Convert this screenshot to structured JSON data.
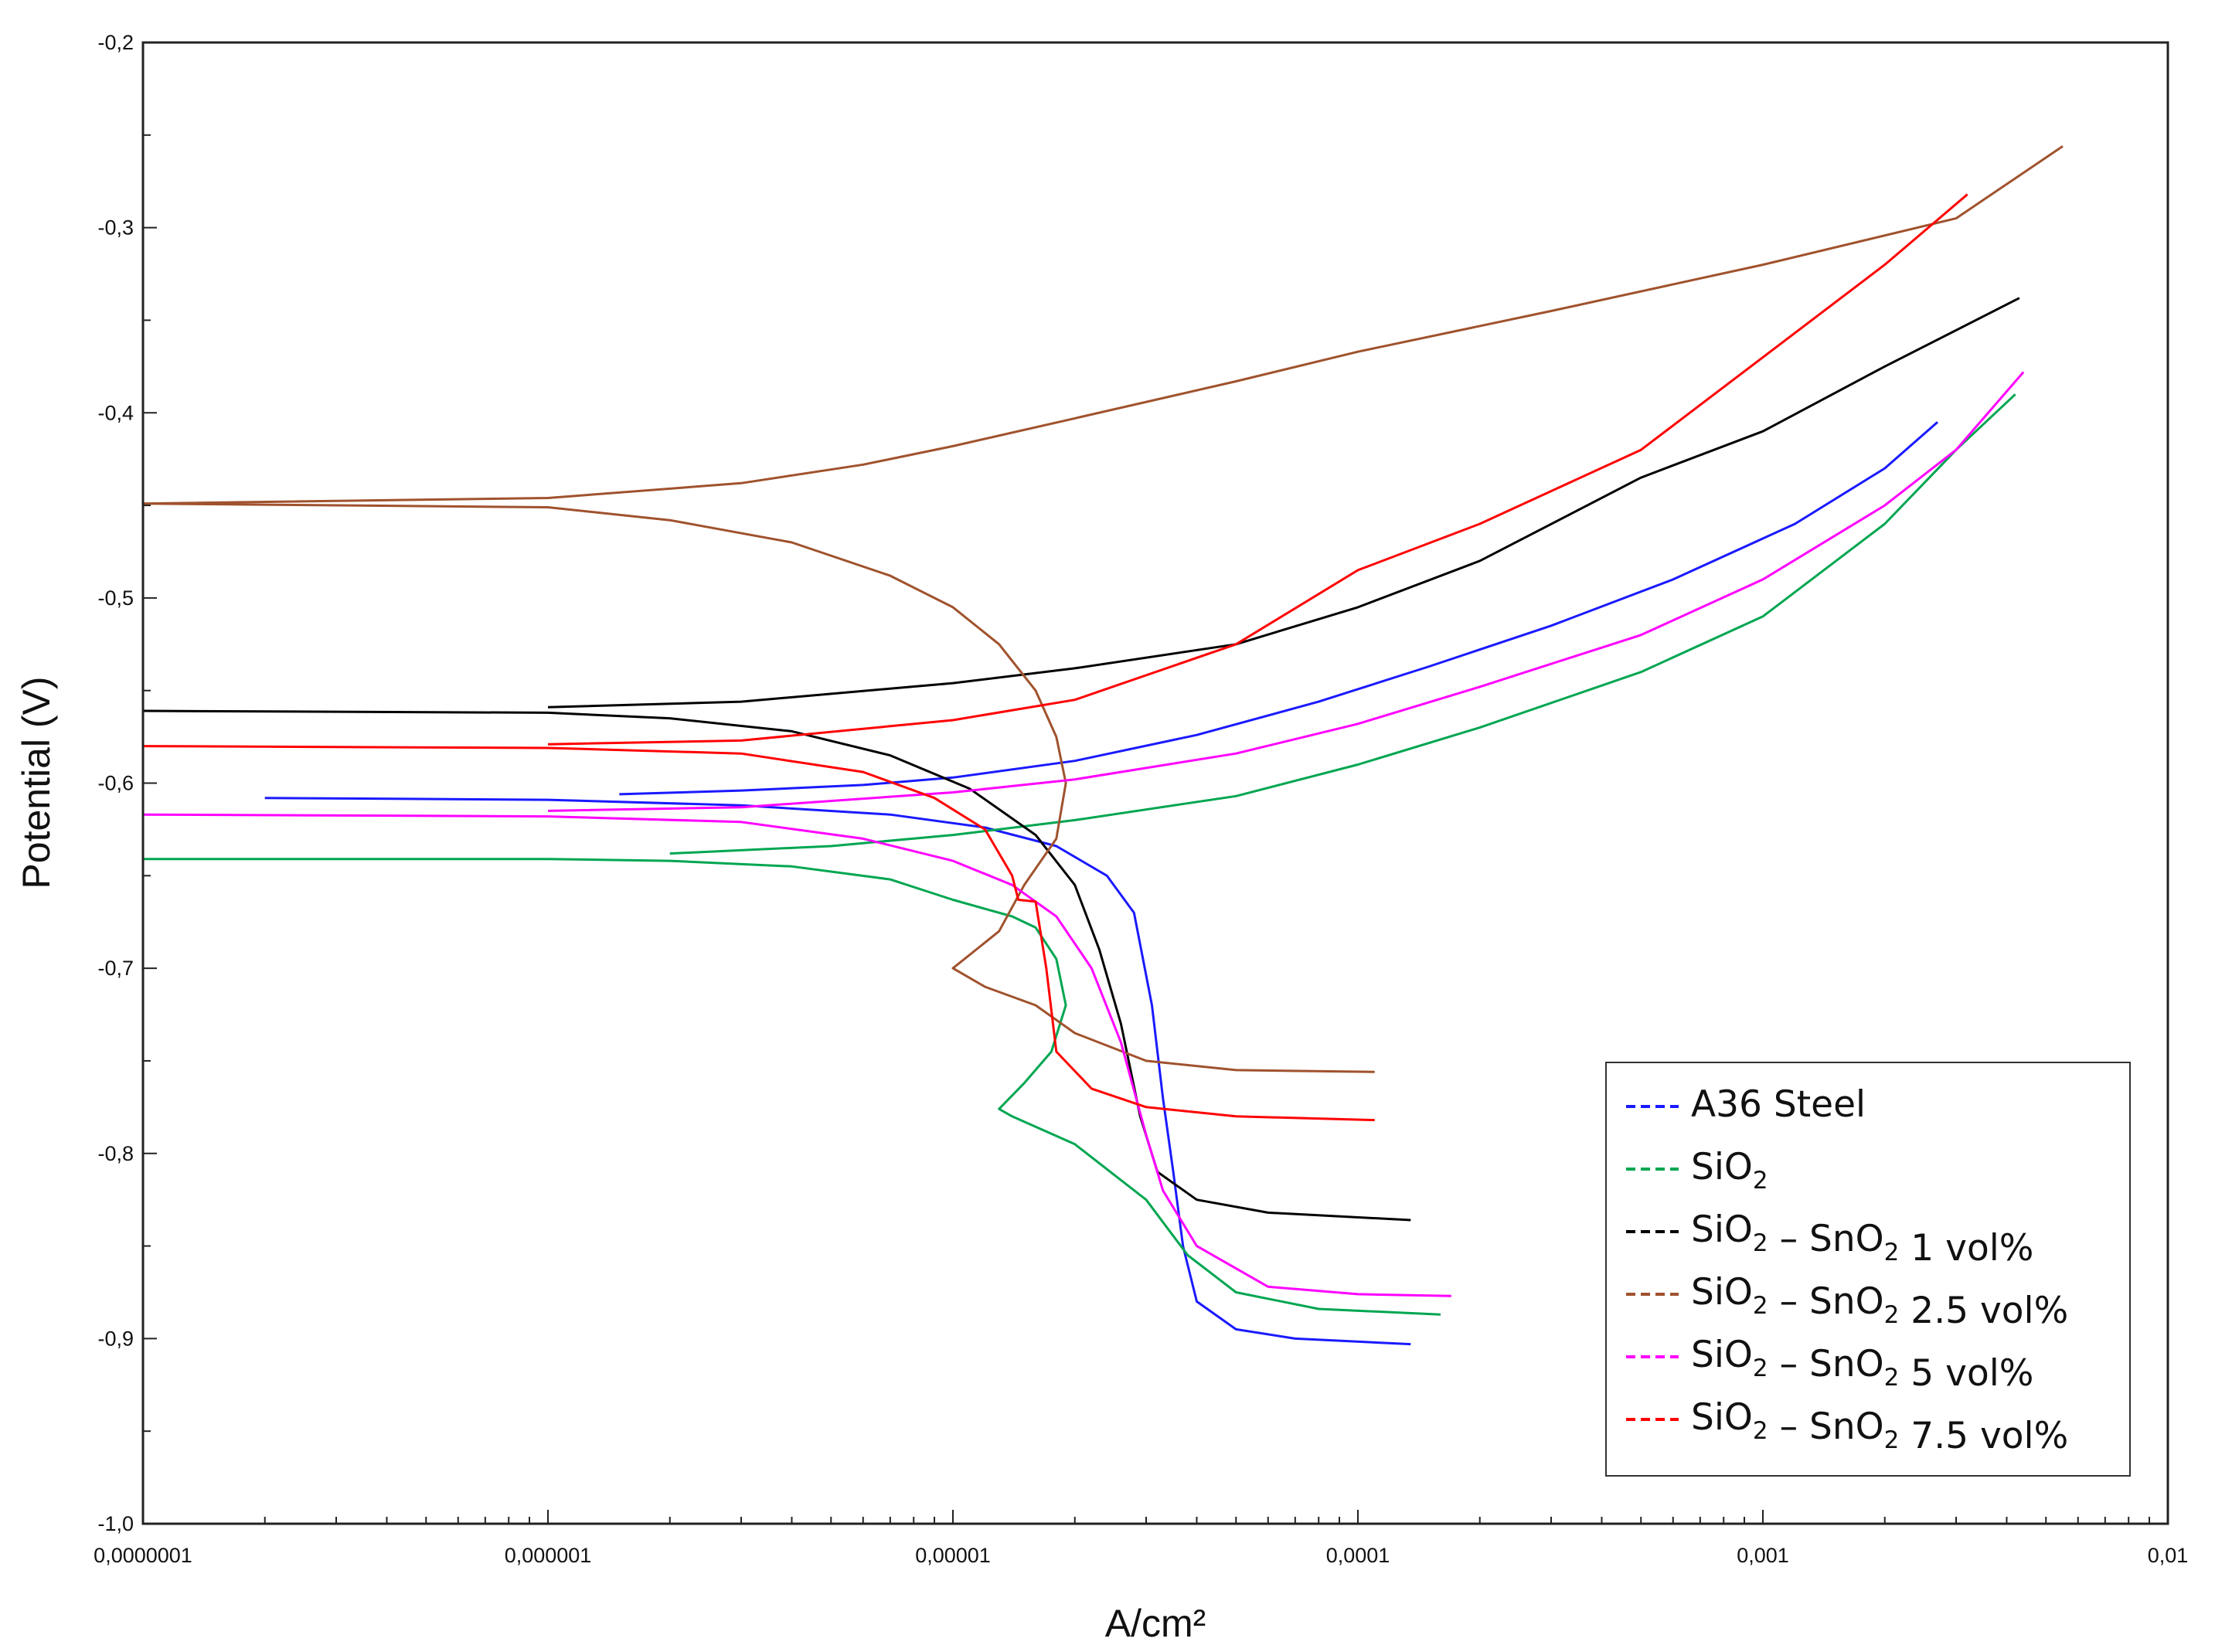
{
  "chart_data": {
    "type": "line",
    "title": "",
    "xlabel": "A/cm²",
    "ylabel": "Potential (V)",
    "xscale": "log",
    "xlim": [
      1e-07,
      0.01
    ],
    "ylim": [
      -1.0,
      -0.2
    ],
    "grid": false,
    "legend_position": "bottom-right",
    "x_tick_labels": [
      "0,0000001",
      "0,000001",
      "0,00001",
      "0,0001",
      "0,001",
      "0,01"
    ],
    "y_tick_labels": [
      "-0,2",
      "-0,3",
      "-0,4",
      "-0,5",
      "-0,6",
      "-0,7",
      "-0,8",
      "-0,9",
      "-1,0"
    ],
    "series": [
      {
        "name": "A36 Steel",
        "legend_main": "A36 Steel",
        "color": "#1a1aff",
        "points": [
          [
            2e-07,
            -0.608
          ],
          [
            1e-06,
            -0.609
          ],
          [
            3e-06,
            -0.612
          ],
          [
            7e-06,
            -0.617
          ],
          [
            1.2e-05,
            -0.624
          ],
          [
            1.8e-05,
            -0.634
          ],
          [
            2.4e-05,
            -0.65
          ],
          [
            2.8e-05,
            -0.67
          ],
          [
            3.1e-05,
            -0.72
          ],
          [
            3.3e-05,
            -0.77
          ],
          [
            3.5e-05,
            -0.81
          ],
          [
            3.7e-05,
            -0.85
          ],
          [
            4e-05,
            -0.88
          ],
          [
            5e-05,
            -0.895
          ],
          [
            7e-05,
            -0.9
          ],
          [
            0.000135,
            -0.903
          ]
        ],
        "anodic": [
          [
            1.5e-06,
            -0.606
          ],
          [
            3e-06,
            -0.604
          ],
          [
            6e-06,
            -0.601
          ],
          [
            1e-05,
            -0.597
          ],
          [
            2e-05,
            -0.588
          ],
          [
            4e-05,
            -0.574
          ],
          [
            8e-05,
            -0.556
          ],
          [
            0.00015,
            -0.537
          ],
          [
            0.0003,
            -0.515
          ],
          [
            0.0006,
            -0.49
          ],
          [
            0.0012,
            -0.46
          ],
          [
            0.002,
            -0.43
          ],
          [
            0.0027,
            -0.405
          ]
        ]
      },
      {
        "name": "SiO2",
        "legend_main": "SiO",
        "legend_sub": "2",
        "legend_tail": "",
        "color": "#00a651",
        "points": [
          [
            1e-07,
            -0.641
          ],
          [
            5e-07,
            -0.641
          ],
          [
            1e-06,
            -0.641
          ],
          [
            2e-06,
            -0.642
          ],
          [
            4e-06,
            -0.645
          ],
          [
            7e-06,
            -0.652
          ],
          [
            1e-05,
            -0.663
          ],
          [
            1.4e-05,
            -0.672
          ],
          [
            1.6e-05,
            -0.678
          ],
          [
            1.8e-05,
            -0.695
          ],
          [
            1.9e-05,
            -0.72
          ],
          [
            1.75e-05,
            -0.745
          ],
          [
            1.5e-05,
            -0.762
          ],
          [
            1.3e-05,
            -0.776
          ],
          [
            1.4e-05,
            -0.78
          ],
          [
            2e-05,
            -0.795
          ],
          [
            3e-05,
            -0.825
          ],
          [
            3.8e-05,
            -0.855
          ],
          [
            5e-05,
            -0.875
          ],
          [
            8e-05,
            -0.884
          ],
          [
            0.00016,
            -0.887
          ]
        ],
        "anodic": [
          [
            2e-06,
            -0.638
          ],
          [
            5e-06,
            -0.634
          ],
          [
            1e-05,
            -0.628
          ],
          [
            2e-05,
            -0.62
          ],
          [
            5e-05,
            -0.607
          ],
          [
            0.0001,
            -0.59
          ],
          [
            0.0002,
            -0.57
          ],
          [
            0.0005,
            -0.54
          ],
          [
            0.001,
            -0.51
          ],
          [
            0.002,
            -0.46
          ],
          [
            0.003,
            -0.42
          ],
          [
            0.0042,
            -0.39
          ]
        ]
      },
      {
        "name": "SiO2 – SnO2 1 vol%",
        "legend_main": "SiO",
        "legend_sub": "2",
        "legend_mid": " – SnO",
        "legend_sub2": "2",
        "legend_tail": " 1 vol%",
        "color": "#000000",
        "points": [
          [
            1e-07,
            -0.561
          ],
          [
            1e-06,
            -0.562
          ],
          [
            2e-06,
            -0.565
          ],
          [
            4e-06,
            -0.572
          ],
          [
            7e-06,
            -0.585
          ],
          [
            1.1e-05,
            -0.603
          ],
          [
            1.6e-05,
            -0.628
          ],
          [
            2e-05,
            -0.655
          ],
          [
            2.3e-05,
            -0.69
          ],
          [
            2.6e-05,
            -0.73
          ],
          [
            2.9e-05,
            -0.78
          ],
          [
            3.2e-05,
            -0.81
          ],
          [
            4e-05,
            -0.825
          ],
          [
            6e-05,
            -0.832
          ],
          [
            0.000135,
            -0.836
          ]
        ],
        "anodic": [
          [
            1e-06,
            -0.559
          ],
          [
            3e-06,
            -0.556
          ],
          [
            1e-05,
            -0.546
          ],
          [
            2e-05,
            -0.538
          ],
          [
            5e-05,
            -0.525
          ],
          [
            0.0001,
            -0.505
          ],
          [
            0.0002,
            -0.48
          ],
          [
            0.0005,
            -0.435
          ],
          [
            0.001,
            -0.41
          ],
          [
            0.002,
            -0.375
          ],
          [
            0.0043,
            -0.338
          ]
        ]
      },
      {
        "name": "SiO2 – SnO2 2.5 vol%",
        "legend_main": "SiO",
        "legend_sub": "2",
        "legend_mid": " – SnO",
        "legend_sub2": "2",
        "legend_tail": " 2.5 vol%",
        "color": "#a0522d",
        "points": [
          [
            1e-07,
            -0.449
          ],
          [
            1e-06,
            -0.451
          ],
          [
            2e-06,
            -0.458
          ],
          [
            4e-06,
            -0.47
          ],
          [
            7e-06,
            -0.488
          ],
          [
            1e-05,
            -0.505
          ],
          [
            1.3e-05,
            -0.525
          ],
          [
            1.6e-05,
            -0.55
          ],
          [
            1.8e-05,
            -0.575
          ],
          [
            1.9e-05,
            -0.6
          ],
          [
            1.8e-05,
            -0.63
          ],
          [
            1.5e-05,
            -0.655
          ],
          [
            1.3e-05,
            -0.68
          ],
          [
            1e-05,
            -0.7
          ],
          [
            1.2e-05,
            -0.71
          ],
          [
            1.6e-05,
            -0.72
          ],
          [
            2e-05,
            -0.735
          ],
          [
            3e-05,
            -0.75
          ],
          [
            5e-05,
            -0.755
          ],
          [
            0.00011,
            -0.756
          ]
        ],
        "anodic": [
          [
            1e-07,
            -0.449
          ],
          [
            1e-06,
            -0.446
          ],
          [
            3e-06,
            -0.438
          ],
          [
            6e-06,
            -0.428
          ],
          [
            1e-05,
            -0.418
          ],
          [
            2e-05,
            -0.403
          ],
          [
            5e-05,
            -0.383
          ],
          [
            0.0001,
            -0.367
          ],
          [
            0.0003,
            -0.345
          ],
          [
            0.001,
            -0.32
          ],
          [
            0.003,
            -0.295
          ],
          [
            0.0055,
            -0.256
          ]
        ]
      },
      {
        "name": "SiO2 – SnO2 5 vol%",
        "legend_main": "SiO",
        "legend_sub": "2",
        "legend_mid": " – SnO",
        "legend_sub2": "2",
        "legend_tail": " 5 vol%",
        "color": "#ff00ff",
        "points": [
          [
            1e-07,
            -0.617
          ],
          [
            1e-06,
            -0.618
          ],
          [
            3e-06,
            -0.621
          ],
          [
            6e-06,
            -0.63
          ],
          [
            1e-05,
            -0.642
          ],
          [
            1.4e-05,
            -0.655
          ],
          [
            1.8e-05,
            -0.672
          ],
          [
            2.2e-05,
            -0.7
          ],
          [
            2.6e-05,
            -0.74
          ],
          [
            3e-05,
            -0.79
          ],
          [
            3.3e-05,
            -0.82
          ],
          [
            4e-05,
            -0.85
          ],
          [
            6e-05,
            -0.872
          ],
          [
            0.0001,
            -0.876
          ],
          [
            0.00017,
            -0.877
          ]
        ],
        "anodic": [
          [
            1e-06,
            -0.615
          ],
          [
            3e-06,
            -0.613
          ],
          [
            1e-05,
            -0.605
          ],
          [
            2e-05,
            -0.598
          ],
          [
            5e-05,
            -0.584
          ],
          [
            0.0001,
            -0.568
          ],
          [
            0.0002,
            -0.548
          ],
          [
            0.0005,
            -0.52
          ],
          [
            0.001,
            -0.49
          ],
          [
            0.002,
            -0.45
          ],
          [
            0.003,
            -0.42
          ],
          [
            0.0044,
            -0.378
          ]
        ]
      },
      {
        "name": "SiO2 – SnO2 7.5 vol%",
        "legend_main": "SiO",
        "legend_sub": "2",
        "legend_mid": " – SnO",
        "legend_sub2": "2",
        "legend_tail": " 7.5 vol%",
        "color": "#ff0000",
        "points": [
          [
            1e-07,
            -0.58
          ],
          [
            1e-06,
            -0.581
          ],
          [
            3e-06,
            -0.584
          ],
          [
            6e-06,
            -0.594
          ],
          [
            9e-06,
            -0.608
          ],
          [
            1.2e-05,
            -0.625
          ],
          [
            1.4e-05,
            -0.65
          ],
          [
            1.45e-05,
            -0.663
          ],
          [
            1.6e-05,
            -0.664
          ],
          [
            1.7e-05,
            -0.7
          ],
          [
            1.8e-05,
            -0.745
          ],
          [
            2.2e-05,
            -0.765
          ],
          [
            3e-05,
            -0.775
          ],
          [
            5e-05,
            -0.78
          ],
          [
            0.00011,
            -0.782
          ]
        ],
        "anodic": [
          [
            1e-06,
            -0.579
          ],
          [
            3e-06,
            -0.577
          ],
          [
            1e-05,
            -0.566
          ],
          [
            2e-05,
            -0.555
          ],
          [
            5e-05,
            -0.525
          ],
          [
            0.0001,
            -0.485
          ],
          [
            0.0002,
            -0.46
          ],
          [
            0.0005,
            -0.42
          ],
          [
            0.001,
            -0.37
          ],
          [
            0.002,
            -0.32
          ],
          [
            0.0032,
            -0.282
          ]
        ]
      }
    ]
  }
}
